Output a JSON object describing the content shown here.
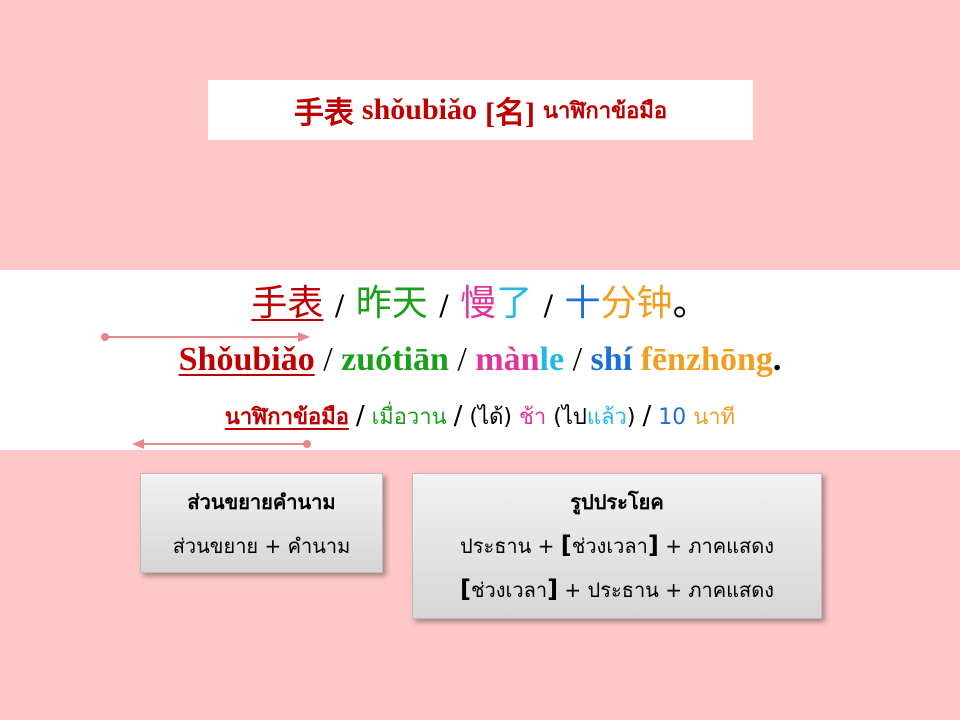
{
  "colors": {
    "background": "#ffc7c7",
    "red": "#c00000",
    "green": "#1aa01a",
    "pink": "#e0359a",
    "cyan": "#23b8e8",
    "blue": "#1c6fd8",
    "orange": "#f0a020",
    "arrow": "#e8868a"
  },
  "title": {
    "chinese": "手表",
    "pinyin": "shǒubiǎo",
    "pos": "[名]",
    "thai_part1": "นาฬิกา",
    "thai_part2": "ข้อมือ"
  },
  "sentence": {
    "chinese": {
      "w1": "手表",
      "w2": "昨天",
      "w3a": "慢",
      "w3b": "了",
      "w4a": "十",
      "w4b": "分",
      "w4c": "钟",
      "end": "。",
      "sep": "/"
    },
    "pinyin": {
      "w1": "Shǒubiǎo",
      "w2": "zuótiān",
      "w3a": "màn",
      "w3b": "le",
      "w4a": "shí",
      "w4b": "fēnzhōng",
      "end": ".",
      "sep": "/"
    },
    "thai": {
      "w1a": "นาฬิกา",
      "w1b": "ข้อมือ",
      "w2": "เมื่อวาน",
      "w3a_paren_open": "(",
      "w3a": "ได้",
      "w3a_paren_close": ")",
      "w3b": "ช้า",
      "w3c_paren_open": "(",
      "w3c1": "ไป",
      "w3c2": "แล้ว",
      "w3c_paren_close": ")",
      "w4a": "10",
      "w4b": "นาที",
      "sep": "/"
    }
  },
  "box_modifier": {
    "heading": "ส่วนขยายคำนาม",
    "formula": "ส่วนขยาย + คำนาม"
  },
  "box_pattern": {
    "heading": "รูปประโยค",
    "row1_a": "ประธาน + ",
    "row1_open": "[",
    "row1_b": "ช่วงเวลา",
    "row1_close": "]",
    "row1_c": " + ภาคแสดง",
    "row2_open": "[",
    "row2_a": "ช่วงเวลา",
    "row2_close": "]",
    "row2_b": " + ประธาน + ภาคแสดง"
  }
}
